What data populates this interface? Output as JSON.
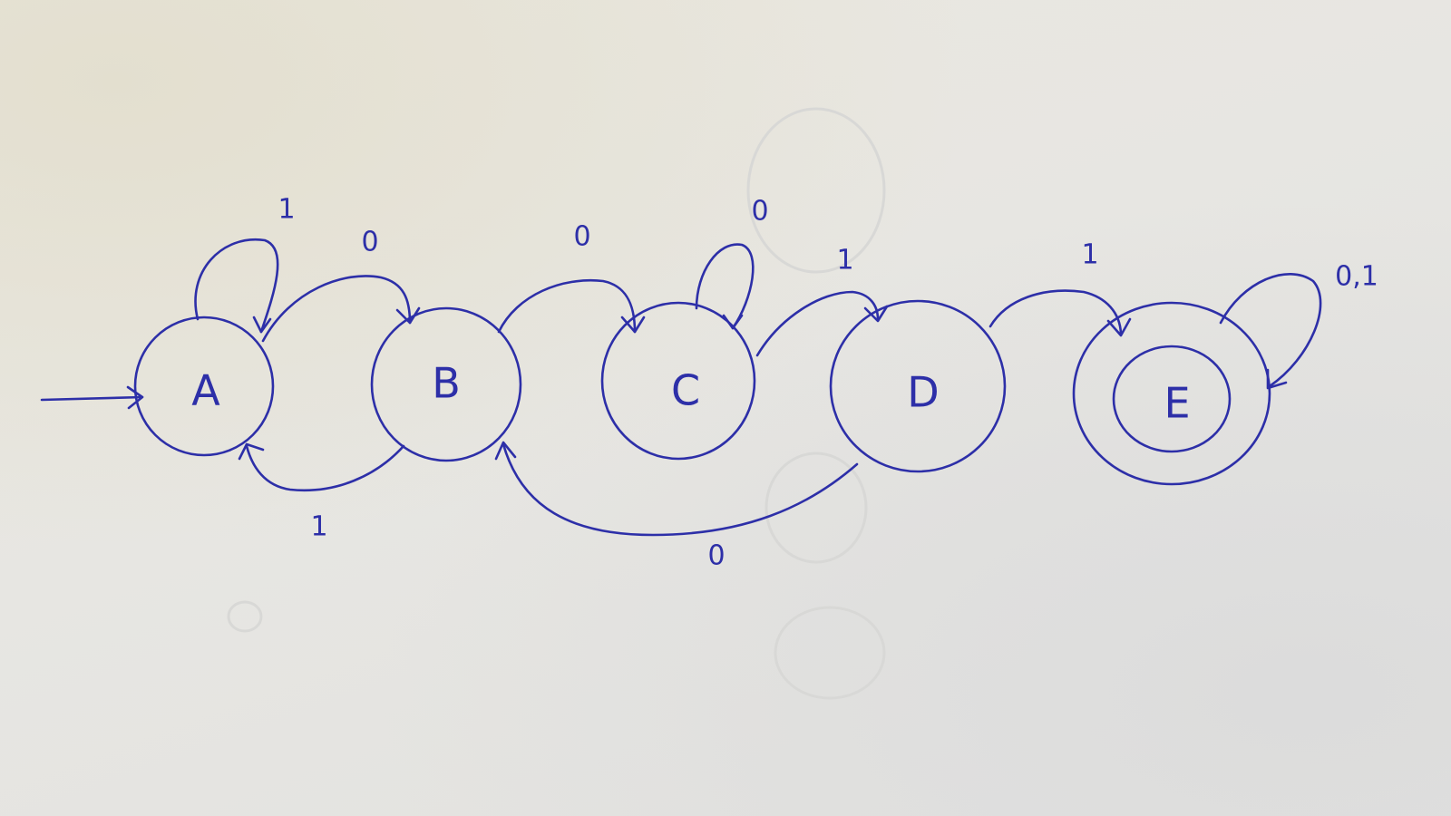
{
  "diagram": {
    "type": "finite-state-machine",
    "ink_color": "#2d2fa8",
    "paper_color": "#e7e6e2",
    "start_state": "A",
    "states": [
      {
        "id": "A",
        "label": "A",
        "accepting": false
      },
      {
        "id": "B",
        "label": "B",
        "accepting": false
      },
      {
        "id": "C",
        "label": "C",
        "accepting": false
      },
      {
        "id": "D",
        "label": "D",
        "accepting": false
      },
      {
        "id": "E",
        "label": "E",
        "accepting": true
      }
    ],
    "transitions": [
      {
        "id": "A-A",
        "from": "A",
        "to": "A",
        "label": "1"
      },
      {
        "id": "A-B",
        "from": "A",
        "to": "B",
        "label": "0"
      },
      {
        "id": "B-A",
        "from": "B",
        "to": "A",
        "label": "1"
      },
      {
        "id": "B-C",
        "from": "B",
        "to": "C",
        "label": "0"
      },
      {
        "id": "C-C",
        "from": "C",
        "to": "C",
        "label": "0"
      },
      {
        "id": "C-D",
        "from": "C",
        "to": "D",
        "label": "1"
      },
      {
        "id": "D-B",
        "from": "D",
        "to": "B",
        "label": "0"
      },
      {
        "id": "D-E",
        "from": "D",
        "to": "E",
        "label": "1"
      },
      {
        "id": "E-E",
        "from": "E",
        "to": "E",
        "label": "0,1"
      }
    ]
  }
}
